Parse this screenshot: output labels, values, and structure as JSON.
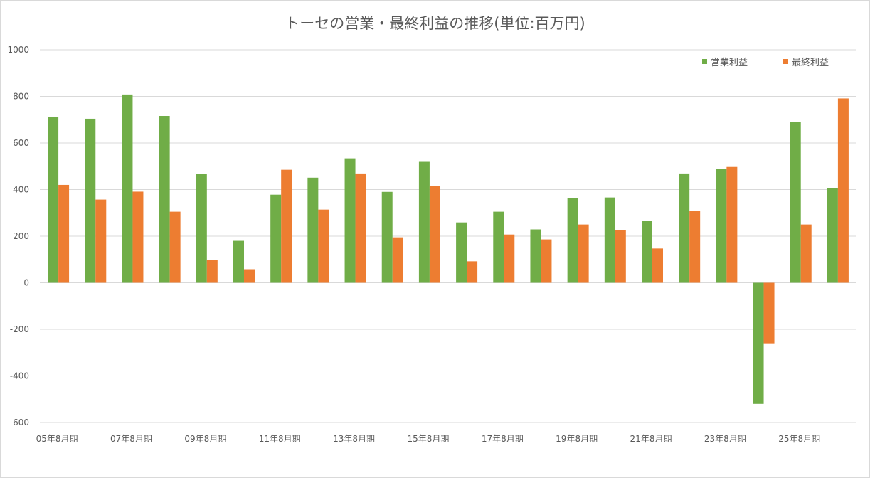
{
  "chart_data": {
    "type": "bar",
    "title": "トーセの営業・最終利益の推移(単位:百万円)",
    "xlabel": "",
    "ylabel": "",
    "ylim": [
      -600,
      1000
    ],
    "yticks": [
      1000,
      800,
      600,
      400,
      200,
      0,
      -200,
      -400,
      -600
    ],
    "grid": true,
    "legend_position": "top-right",
    "categories": [
      "05年8月期",
      "06年8月期",
      "07年8月期",
      "08年8月期",
      "09年8月期",
      "10年8月期",
      "11年8月期",
      "12年8月期",
      "13年8月期",
      "14年8月期",
      "15年8月期",
      "16年8月期",
      "17年8月期",
      "18年8月期",
      "19年8月期",
      "20年8月期",
      "21年8月期",
      "22年8月期",
      "23年8月期",
      "24年8月期",
      "25年8月期",
      "26年8月期"
    ],
    "visible_tick_labels": [
      "05年8月期",
      "07年8月期",
      "09年8月期",
      "11年8月期",
      "13年8月期",
      "15年8月期",
      "17年8月期",
      "19年8月期",
      "21年8月期",
      "23年8月期",
      "25年8月期"
    ],
    "series": [
      {
        "name": "営業利益",
        "color": "#70ad47",
        "values": [
          713,
          704,
          808,
          716,
          466,
          180,
          378,
          451,
          534,
          390,
          519,
          259,
          305,
          229,
          363,
          366,
          265,
          469,
          488,
          -520,
          689,
          405
        ]
      },
      {
        "name": "最終利益",
        "color": "#ed7d31",
        "values": [
          420,
          357,
          391,
          305,
          98,
          58,
          485,
          314,
          469,
          195,
          414,
          92,
          207,
          186,
          250,
          225,
          147,
          308,
          497,
          -260,
          250,
          791
        ]
      }
    ]
  }
}
